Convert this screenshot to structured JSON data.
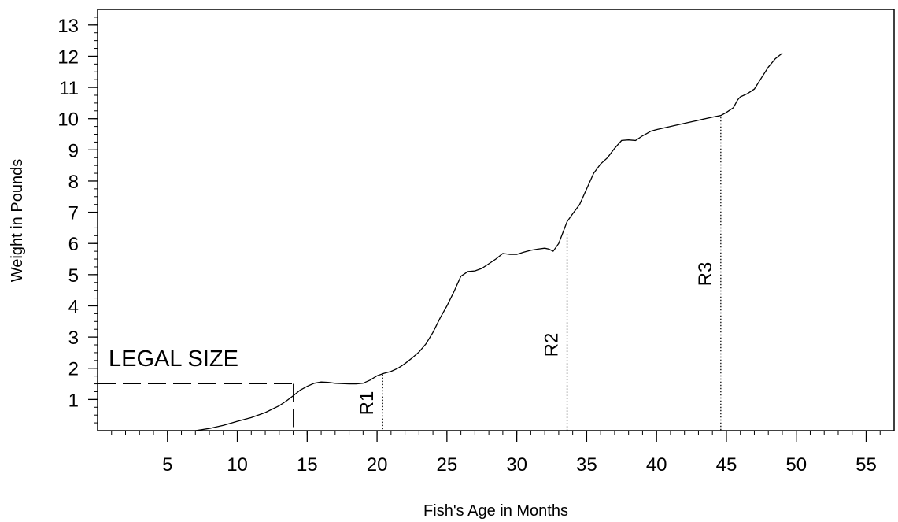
{
  "chart_data": {
    "type": "line",
    "title": "",
    "xlabel": "Fish's Age in Months",
    "ylabel": "Weight in Pounds",
    "xlim": [
      0,
      57
    ],
    "ylim": [
      0,
      13.5
    ],
    "x_ticks": [
      5,
      10,
      15,
      20,
      25,
      30,
      35,
      40,
      45,
      50,
      55
    ],
    "y_ticks": [
      1,
      2,
      3,
      4,
      5,
      6,
      7,
      8,
      9,
      10,
      11,
      12,
      13
    ],
    "grid": false,
    "series": [
      {
        "x": [
          7.0,
          8.0,
          9.0,
          10.0,
          11.0,
          12.0,
          13.0,
          13.5,
          14.0,
          14.5,
          15.0,
          15.5,
          16.0,
          16.5,
          17.0,
          18.0,
          18.5,
          19.0,
          19.5,
          20.0,
          20.5,
          21.0,
          21.5,
          22.0,
          22.5,
          23.0,
          23.5,
          24.0,
          24.5,
          25.0,
          25.5,
          26.0,
          26.5,
          27.0,
          27.5,
          28.0,
          28.5,
          29.0,
          29.5,
          30.0,
          30.5,
          31.0,
          31.5,
          32.0,
          32.3,
          32.6,
          33.0,
          33.3,
          33.6,
          34.0,
          34.5,
          35.0,
          35.5,
          36.0,
          36.5,
          37.0,
          37.5,
          38.0,
          38.5,
          39.0,
          39.3,
          39.6,
          40.0,
          41.0,
          42.0,
          43.0,
          44.0,
          44.6,
          45.0,
          45.5,
          45.8,
          46.0,
          46.5,
          47.0,
          47.5,
          48.0,
          48.5,
          49.0
        ],
        "y": [
          0.0,
          0.07,
          0.17,
          0.3,
          0.42,
          0.58,
          0.8,
          0.95,
          1.12,
          1.3,
          1.42,
          1.52,
          1.56,
          1.55,
          1.52,
          1.5,
          1.5,
          1.52,
          1.62,
          1.76,
          1.84,
          1.9,
          2.0,
          2.15,
          2.33,
          2.52,
          2.78,
          3.15,
          3.6,
          4.0,
          4.45,
          4.95,
          5.1,
          5.12,
          5.2,
          5.35,
          5.5,
          5.68,
          5.65,
          5.65,
          5.72,
          5.78,
          5.82,
          5.85,
          5.82,
          5.75,
          6.0,
          6.35,
          6.7,
          6.95,
          7.25,
          7.75,
          8.25,
          8.55,
          8.75,
          9.05,
          9.3,
          9.32,
          9.3,
          9.45,
          9.52,
          9.6,
          9.65,
          9.75,
          9.85,
          9.95,
          10.05,
          10.1,
          10.2,
          10.35,
          10.6,
          10.7,
          10.8,
          10.95,
          11.3,
          11.65,
          11.92,
          12.1
        ]
      }
    ],
    "reference_lines": [
      {
        "label": "R1",
        "x": 20.4,
        "y_top": 1.8
      },
      {
        "label": "R2",
        "x": 33.6,
        "y_top": 6.3
      },
      {
        "label": "R3",
        "x": 44.6,
        "y_top": 10.05
      }
    ],
    "legal_size": {
      "label": "LEGAL SIZE",
      "x": 14.0,
      "y": 1.5
    }
  }
}
